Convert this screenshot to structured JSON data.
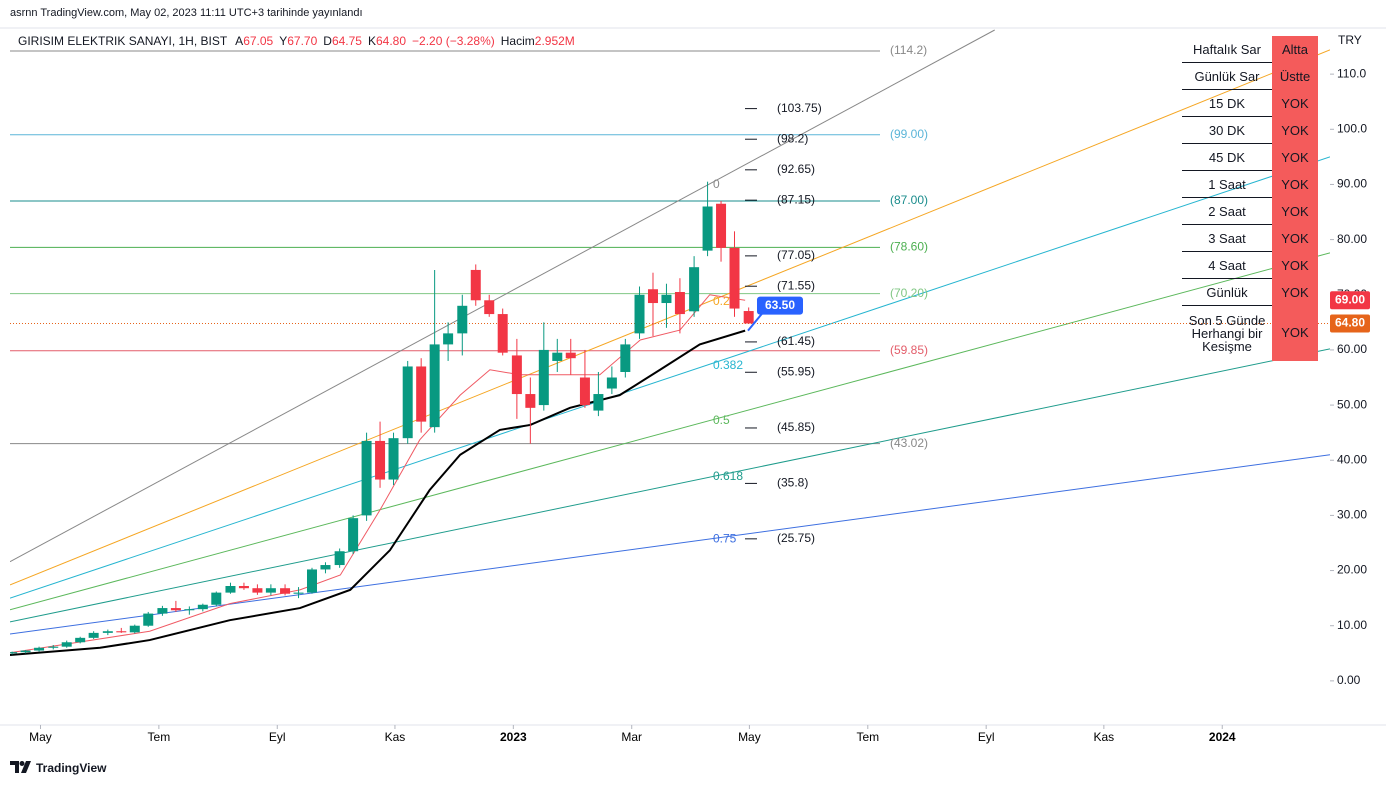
{
  "header": {
    "published": "asrnn TradingView.com, May 02, 2023 11:11 UTC+3 tarihinde yayınlandı"
  },
  "chart_data": {
    "type": "candlestick",
    "legend": {
      "symbol": "GIRISIM ELEKTRIK SANAYI, 1H, BIST",
      "items": [
        {
          "label": "A",
          "value": "67.05"
        },
        {
          "label": "Y",
          "value": "67.70"
        },
        {
          "label": "D",
          "value": "64.75"
        },
        {
          "label": "K",
          "value": "64.80"
        },
        {
          "value": "−2.20 (−3.28%)"
        },
        {
          "label": "Hacim",
          "value": "2.952M"
        }
      ]
    },
    "up_color": "#089981",
    "down_color": "#f23645",
    "x": [
      2022.293,
      2022.312,
      2022.331,
      2022.351,
      2022.37,
      2022.389,
      2022.408,
      2022.428,
      2022.447,
      2022.466,
      2022.485,
      2022.505,
      2022.524,
      2022.543,
      2022.562,
      2022.581,
      2022.601,
      2022.62,
      2022.639,
      2022.658,
      2022.678,
      2022.697,
      2022.716,
      2022.735,
      2022.755,
      2022.774,
      2022.793,
      2022.812,
      2022.831,
      2022.851,
      2022.87,
      2022.889,
      2022.908,
      2022.928,
      2022.947,
      2022.966,
      2022.985,
      2023.005,
      2023.024,
      2023.043,
      2023.062,
      2023.081,
      2023.101,
      2023.12,
      2023.139,
      2023.158,
      2023.178,
      2023.197,
      2023.216,
      2023.235,
      2023.255,
      2023.274,
      2023.293,
      2023.312,
      2023.332
    ],
    "open": [
      5.0,
      5.2,
      5.5,
      6.0,
      6.2,
      7.0,
      7.8,
      8.7,
      9.0,
      8.8,
      10.0,
      12.2,
      13.2,
      12.8,
      13.0,
      13.8,
      16.0,
      17.2,
      16.8,
      16.0,
      16.8,
      15.8,
      16.0,
      20.2,
      21.0,
      23.5,
      30.0,
      43.5,
      36.5,
      44.0,
      57.0,
      46.0,
      61.0,
      63.0,
      74.5,
      69.0,
      66.5,
      59.0,
      52.0,
      50.0,
      58.0,
      59.5,
      55.0,
      49.0,
      53.0,
      56.0,
      63.0,
      71.0,
      68.5,
      70.5,
      67.0,
      78.0,
      86.5,
      78.5,
      67.05
    ],
    "high": [
      5.3,
      5.6,
      6.2,
      6.5,
      7.3,
      8.0,
      9.0,
      9.3,
      9.6,
      10.2,
      12.5,
      13.6,
      14.5,
      13.5,
      14.0,
      16.2,
      17.8,
      17.8,
      17.5,
      17.5,
      17.5,
      17.0,
      20.5,
      21.5,
      24.0,
      30.0,
      45.0,
      47.0,
      45.0,
      58.0,
      58.5,
      74.5,
      65.0,
      70.0,
      75.5,
      70.0,
      67.5,
      62.0,
      55.0,
      65.0,
      62.0,
      62.0,
      60.0,
      56.0,
      57.0,
      62.0,
      71.5,
      74.0,
      72.0,
      73.0,
      77.0,
      90.5,
      87.0,
      81.5,
      67.7
    ],
    "low": [
      4.8,
      5.0,
      5.3,
      5.7,
      6.0,
      6.8,
      7.6,
      8.3,
      8.7,
      8.6,
      9.8,
      11.8,
      12.5,
      12.0,
      12.6,
      13.5,
      15.8,
      16.5,
      15.6,
      15.5,
      15.5,
      15.0,
      15.8,
      19.5,
      20.5,
      23.0,
      29.0,
      35.0,
      35.5,
      43.0,
      45.0,
      45.0,
      58.0,
      59.0,
      68.0,
      66.0,
      59.0,
      47.5,
      43.0,
      49.0,
      56.0,
      55.5,
      49.5,
      48.0,
      52.0,
      55.0,
      62.0,
      62.5,
      64.0,
      63.0,
      66.0,
      77.0,
      76.0,
      66.0,
      64.75
    ],
    "close": [
      5.2,
      5.5,
      6.0,
      6.2,
      7.0,
      7.8,
      8.7,
      9.0,
      8.8,
      10.0,
      12.2,
      13.2,
      12.8,
      13.0,
      13.8,
      16.0,
      17.2,
      16.8,
      16.0,
      16.8,
      15.8,
      16.0,
      20.2,
      21.0,
      23.5,
      29.5,
      43.5,
      36.5,
      44.0,
      57.0,
      47.0,
      61.0,
      63.0,
      68.0,
      69.0,
      66.5,
      59.5,
      52.0,
      49.5,
      60.0,
      59.5,
      58.5,
      50.0,
      52.0,
      55.0,
      61.0,
      70.0,
      68.5,
      70.0,
      66.5,
      75.0,
      86.0,
      78.5,
      67.5,
      64.8
    ],
    "xlim": [
      2022.29,
      2024.152
    ],
    "xticks": [
      {
        "value": 2022.333,
        "label": "May"
      },
      {
        "value": 2022.5,
        "label": "Tem"
      },
      {
        "value": 2022.667,
        "label": "Eyl"
      },
      {
        "value": 2022.833,
        "label": "Kas"
      },
      {
        "value": 2023,
        "label": "2023"
      },
      {
        "value": 2023.167,
        "label": "Mar"
      },
      {
        "value": 2023.333,
        "label": "May"
      },
      {
        "value": 2023.5,
        "label": "Tem"
      },
      {
        "value": 2023.667,
        "label": "Eyl"
      },
      {
        "value": 2023.833,
        "label": "Kas"
      },
      {
        "value": 2024,
        "label": "2024"
      }
    ],
    "ylim": [
      -8,
      118
    ],
    "yticks": [
      {
        "value": 0,
        "label": "0.00"
      },
      {
        "value": 10,
        "label": "10.00"
      },
      {
        "value": 20,
        "label": "20.00"
      },
      {
        "value": 30,
        "label": "30.00"
      },
      {
        "value": 40,
        "label": "40.00"
      },
      {
        "value": 50,
        "label": "50.00"
      },
      {
        "value": 60,
        "label": "60.00"
      },
      {
        "value": 70,
        "label": "70.00"
      },
      {
        "value": 80,
        "label": "80.00"
      },
      {
        "value": 90,
        "label": "90.00"
      },
      {
        "value": 100,
        "label": "100.0"
      },
      {
        "value": 110,
        "label": "110.0"
      }
    ],
    "y_unit": "TRY",
    "moving_averages": [
      {
        "color": "#000000",
        "width": 2,
        "x": [
          2022.29,
          2022.417,
          2022.487,
          2022.6,
          2022.699,
          2022.77,
          2022.826,
          2022.882,
          2022.925,
          2022.981,
          2023.024,
          2023.08,
          2023.15,
          2023.207,
          2023.263,
          2023.327
        ],
        "values": [
          4.7,
          6,
          7.4,
          11,
          13.2,
          16.5,
          23.7,
          34.6,
          41,
          45.5,
          46.4,
          49.5,
          51.8,
          56.4,
          61,
          63.5
        ]
      },
      {
        "color": "#f05a64",
        "width": 1,
        "x": [
          2022.29,
          2022.487,
          2022.6,
          2022.699,
          2022.756,
          2022.812,
          2022.868,
          2022.925,
          2022.967,
          2023.009,
          2023.066,
          2023.122,
          2023.179,
          2023.235,
          2023.277,
          2023.327
        ],
        "values": [
          5.1,
          9,
          14,
          16.5,
          19.2,
          31,
          43.7,
          51.8,
          56.4,
          55.5,
          55.5,
          55.5,
          61.8,
          63.6,
          70,
          69
        ]
      }
    ],
    "trend_lines": [
      {
        "color": "#888888",
        "x": [
          2022.29,
          2023.679
        ],
        "values": [
          21.6,
          118
        ]
      },
      {
        "color": "#f5a623",
        "x": [
          2022.29,
          2024.152
        ],
        "values": [
          17.4,
          114.4
        ]
      },
      {
        "color": "#26b5d0",
        "x": [
          2022.29,
          2024.152
        ],
        "values": [
          15.0,
          95.0
        ]
      },
      {
        "color": "#5cb85c",
        "x": [
          2022.29,
          2024.152
        ],
        "values": [
          12.9,
          77.6
        ]
      },
      {
        "color": "#1f9c8c",
        "x": [
          2022.29,
          2024.152
        ],
        "values": [
          10.7,
          60.2
        ]
      },
      {
        "color": "#3d6fe0",
        "x": [
          2022.29,
          2024.152
        ],
        "values": [
          8.5,
          41.0
        ]
      }
    ],
    "levels": [
      {
        "value": 114.2,
        "label": "(114.2)",
        "color": "#888888"
      },
      {
        "value": 99.0,
        "label": "(99.00)",
        "color": "#5bb5d8"
      },
      {
        "value": 87.0,
        "label": "(87.00)",
        "color": "#1a8c8c"
      },
      {
        "value": 78.6,
        "label": "(78.60)",
        "color": "#4caf50"
      },
      {
        "value": 70.2,
        "label": "(70.20)",
        "color": "#81c784"
      },
      {
        "value": 59.85,
        "label": "(59.85)",
        "color": "#e35d6a"
      },
      {
        "value": 43.02,
        "label": "(43.02)",
        "color": "#888888"
      }
    ],
    "projection_marks": [
      {
        "value": 103.75,
        "label": "(103.75)"
      },
      {
        "value": 98.2,
        "label": "(98.2)"
      },
      {
        "value": 92.65,
        "label": "(92.65)"
      },
      {
        "value": 87.15,
        "label": "(87.15)"
      },
      {
        "value": 77.05,
        "label": "(77.05)"
      },
      {
        "value": 71.55,
        "label": "(71.55)"
      },
      {
        "value": 61.45,
        "label": "(61.45)"
      },
      {
        "value": 55.95,
        "label": "(55.95)"
      },
      {
        "value": 45.85,
        "label": "(45.85)"
      },
      {
        "value": 35.8,
        "label": "(35.8)"
      },
      {
        "value": 25.75,
        "label": "(25.75)"
      }
    ],
    "fib_labels": [
      {
        "value": 89.9,
        "label": "0",
        "color": "#888888"
      },
      {
        "value": 68.7,
        "label": "0.2",
        "color": "#f5a623"
      },
      {
        "value": 57.1,
        "label": "0.382",
        "color": "#26b5d0"
      },
      {
        "value": 47.1,
        "label": "0.5",
        "color": "#5cb85c"
      },
      {
        "value": 37.0,
        "label": "0.618",
        "color": "#1f9c8c"
      },
      {
        "value": 25.7,
        "label": "0.75",
        "color": "#3d6fe0"
      }
    ],
    "price_labels": [
      {
        "value": 69.0,
        "label": "69.00",
        "color": "#f23645"
      },
      {
        "value": 64.8,
        "label": "64.80",
        "color": "#e6641a",
        "line": "dotted"
      }
    ],
    "callout": {
      "value": 63.5,
      "label": "63.50",
      "color": "#2962ff"
    }
  },
  "table": {
    "rows": [
      [
        "Haftalık Sar",
        "Altta"
      ],
      [
        "Günlük Sar",
        "Üstte"
      ],
      [
        "15 DK",
        "YOK"
      ],
      [
        "30 DK",
        "YOK"
      ],
      [
        "45 DK",
        "YOK"
      ],
      [
        "1 Saat",
        "YOK"
      ],
      [
        "2 Saat",
        "YOK"
      ],
      [
        "3 Saat",
        "YOK"
      ],
      [
        "4 Saat",
        "YOK"
      ],
      [
        "Günlük",
        "YOK"
      ],
      [
        "Son 5 Günde Herhangi bir Kesişme",
        "YOK"
      ]
    ]
  },
  "footer": {
    "brand": "TradingView"
  }
}
